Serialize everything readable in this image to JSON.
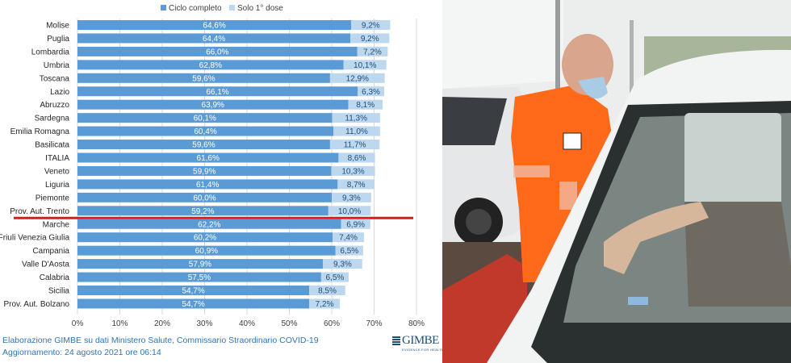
{
  "chart_data": {
    "type": "bar",
    "stacked": true,
    "orientation": "horizontal",
    "legend": [
      "Ciclo completo",
      "Solo 1° dose"
    ],
    "legend_position": "top",
    "categories": [
      "Molise",
      "Puglia",
      "Lombardia",
      "Umbria",
      "Toscana",
      "Lazio",
      "Abruzzo",
      "Sardegna",
      "Emilia Romagna",
      "Basilicata",
      "ITALIA",
      "Veneto",
      "Liguria",
      "Piemonte",
      "Prov. Aut. Trento",
      "Marche",
      "Friuli Venezia Giulia",
      "Campania",
      "Valle D'Aosta",
      "Calabria",
      "Sicilia",
      "Prov. Aut. Bolzano"
    ],
    "series": [
      {
        "name": "Ciclo completo",
        "color": "#5b9bd5",
        "values": [
          64.6,
          64.4,
          66.0,
          62.8,
          59.6,
          66.1,
          63.9,
          60.1,
          60.4,
          59.6,
          61.6,
          59.9,
          61.4,
          60.0,
          59.2,
          62.2,
          60.2,
          60.9,
          57.9,
          57.5,
          54.7,
          54.7
        ],
        "labels": [
          "64,6%",
          "64,4%",
          "66,0%",
          "62,8%",
          "59,6%",
          "66,1%",
          "63,9%",
          "60,1%",
          "60,4%",
          "59,6%",
          "61,6%",
          "59,9%",
          "61,4%",
          "60,0%",
          "59,2%",
          "62,2%",
          "60,2%",
          "60,9%",
          "57,9%",
          "57,5%",
          "54,7%",
          "54,7%"
        ]
      },
      {
        "name": "Solo 1° dose",
        "color": "#bdd7ee",
        "values": [
          9.2,
          9.2,
          7.2,
          10.1,
          12.9,
          6.3,
          8.1,
          11.3,
          11.0,
          11.7,
          8.6,
          10.3,
          8.7,
          9.3,
          10.0,
          6.9,
          7.4,
          6.5,
          9.3,
          6.5,
          8.5,
          7.2
        ],
        "labels": [
          "9,2%",
          "9,2%",
          "7,2%",
          "10,1%",
          "12,9%",
          "6,3%",
          "8,1%",
          "11,3%",
          "11,0%",
          "11,7%",
          "8,6%",
          "10,3%",
          "8,7%",
          "9,3%",
          "10,0%",
          "6,9%",
          "7,4%",
          "6,5%",
          "9,3%",
          "6,5%",
          "8,5%",
          "7,2%"
        ]
      }
    ],
    "xlim": [
      0,
      80
    ],
    "xticks": [
      "0%",
      "10%",
      "20%",
      "30%",
      "40%",
      "50%",
      "60%",
      "70%",
      "80%"
    ],
    "grid": true,
    "highlight_category": "Prov. Aut. Trento",
    "highlight_color": "#e3161b"
  },
  "footer": {
    "source": "Elaborazione GIMBE su dati Ministero Salute, Commissario Straordinario COVID-19",
    "updated": "Aggiornamento: 24 agosto 2021 ore 06:14"
  },
  "logo": {
    "brand": "GIMBE",
    "tagline": "EVIDENCE FOR HEALTH"
  }
}
